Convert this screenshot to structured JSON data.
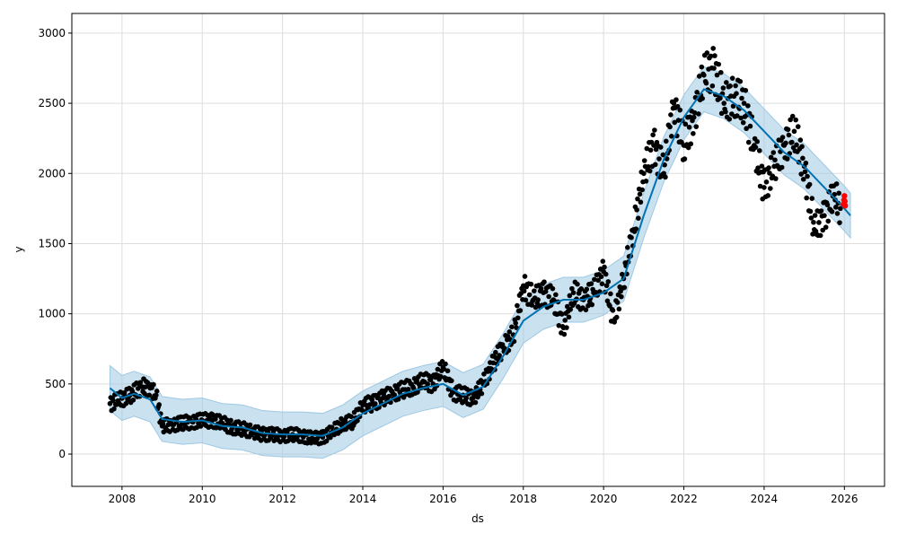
{
  "chart_data": {
    "type": "line",
    "title": "",
    "xlabel": "ds",
    "ylabel": "y",
    "xlim": [
      2006.75,
      2027.0
    ],
    "ylim": [
      -230,
      3140
    ],
    "grid": true,
    "x_ticks": [
      "2008",
      "2010",
      "2012",
      "2014",
      "2016",
      "2018",
      "2020",
      "2022",
      "2024",
      "2026"
    ],
    "y_ticks": [
      "0",
      "500",
      "1000",
      "1500",
      "2000",
      "2500",
      "3000"
    ],
    "colors": {
      "forecast": "#0072B2",
      "band": "#9ec8e3",
      "observed": "#000000",
      "highlight": "#ff0000"
    },
    "forecast": [
      [
        2007.7,
        470
      ],
      [
        2008.0,
        400
      ],
      [
        2008.3,
        430
      ],
      [
        2008.7,
        390
      ],
      [
        2009.0,
        250
      ],
      [
        2009.5,
        230
      ],
      [
        2010.0,
        240
      ],
      [
        2010.5,
        200
      ],
      [
        2011.0,
        190
      ],
      [
        2011.5,
        150
      ],
      [
        2012.0,
        140
      ],
      [
        2012.5,
        140
      ],
      [
        2013.0,
        130
      ],
      [
        2013.5,
        190
      ],
      [
        2014.0,
        290
      ],
      [
        2014.5,
        360
      ],
      [
        2015.0,
        430
      ],
      [
        2015.5,
        470
      ],
      [
        2016.0,
        500
      ],
      [
        2016.5,
        420
      ],
      [
        2017.0,
        480
      ],
      [
        2017.5,
        700
      ],
      [
        2018.0,
        950
      ],
      [
        2018.5,
        1050
      ],
      [
        2019.0,
        1100
      ],
      [
        2019.5,
        1100
      ],
      [
        2020.0,
        1150
      ],
      [
        2020.5,
        1250
      ],
      [
        2021.0,
        1700
      ],
      [
        2021.5,
        2100
      ],
      [
        2022.0,
        2400
      ],
      [
        2022.5,
        2600
      ],
      [
        2023.0,
        2550
      ],
      [
        2023.5,
        2450
      ],
      [
        2024.0,
        2300
      ],
      [
        2024.5,
        2150
      ],
      [
        2025.0,
        2050
      ],
      [
        2025.5,
        1900
      ],
      [
        2026.0,
        1750
      ],
      [
        2026.15,
        1700
      ]
    ],
    "interval_halfwidth": 160,
    "observed": [
      [
        2007.7,
        360
      ],
      [
        2007.9,
        380
      ],
      [
        2008.2,
        420
      ],
      [
        2008.5,
        480
      ],
      [
        2008.7,
        470
      ],
      [
        2008.85,
        420
      ],
      [
        2009.0,
        200
      ],
      [
        2009.25,
        210
      ],
      [
        2009.5,
        220
      ],
      [
        2009.75,
        230
      ],
      [
        2010.0,
        240
      ],
      [
        2010.25,
        240
      ],
      [
        2010.5,
        220
      ],
      [
        2010.75,
        190
      ],
      [
        2011.0,
        180
      ],
      [
        2011.25,
        160
      ],
      [
        2011.5,
        140
      ],
      [
        2011.75,
        140
      ],
      [
        2012.0,
        130
      ],
      [
        2012.25,
        140
      ],
      [
        2012.5,
        130
      ],
      [
        2012.75,
        110
      ],
      [
        2013.0,
        120
      ],
      [
        2013.25,
        160
      ],
      [
        2013.5,
        220
      ],
      [
        2013.75,
        230
      ],
      [
        2014.0,
        350
      ],
      [
        2014.25,
        360
      ],
      [
        2014.5,
        400
      ],
      [
        2014.75,
        430
      ],
      [
        2015.0,
        460
      ],
      [
        2015.25,
        480
      ],
      [
        2015.5,
        520
      ],
      [
        2015.75,
        500
      ],
      [
        2016.0,
        620
      ],
      [
        2016.25,
        440
      ],
      [
        2016.5,
        420
      ],
      [
        2016.75,
        400
      ],
      [
        2017.0,
        500
      ],
      [
        2017.25,
        650
      ],
      [
        2017.5,
        760
      ],
      [
        2017.75,
        850
      ],
      [
        2018.0,
        1200
      ],
      [
        2018.25,
        1100
      ],
      [
        2018.5,
        1150
      ],
      [
        2018.75,
        1100
      ],
      [
        2019.0,
        900
      ],
      [
        2019.25,
        1150
      ],
      [
        2019.5,
        1100
      ],
      [
        2019.75,
        1150
      ],
      [
        2020.0,
        1300
      ],
      [
        2020.25,
        950
      ],
      [
        2020.5,
        1250
      ],
      [
        2020.75,
        1600
      ],
      [
        2021.0,
        2000
      ],
      [
        2021.25,
        2200
      ],
      [
        2021.5,
        2000
      ],
      [
        2021.75,
        2500
      ],
      [
        2022.0,
        2200
      ],
      [
        2022.25,
        2400
      ],
      [
        2022.5,
        2700
      ],
      [
        2022.75,
        2750
      ],
      [
        2023.0,
        2500
      ],
      [
        2023.25,
        2550
      ],
      [
        2023.5,
        2500
      ],
      [
        2023.75,
        2200
      ],
      [
        2024.0,
        1900
      ],
      [
        2024.25,
        2050
      ],
      [
        2024.5,
        2200
      ],
      [
        2024.75,
        2300
      ],
      [
        2025.0,
        2050
      ],
      [
        2025.25,
        1600
      ],
      [
        2025.5,
        1700
      ],
      [
        2025.75,
        1850
      ],
      [
        2025.9,
        1750
      ]
    ],
    "highlighted": [
      [
        2025.98,
        1780
      ],
      [
        2025.99,
        1810
      ],
      [
        2026.0,
        1840
      ],
      [
        2026.01,
        1800
      ],
      [
        2026.02,
        1770
      ]
    ]
  }
}
